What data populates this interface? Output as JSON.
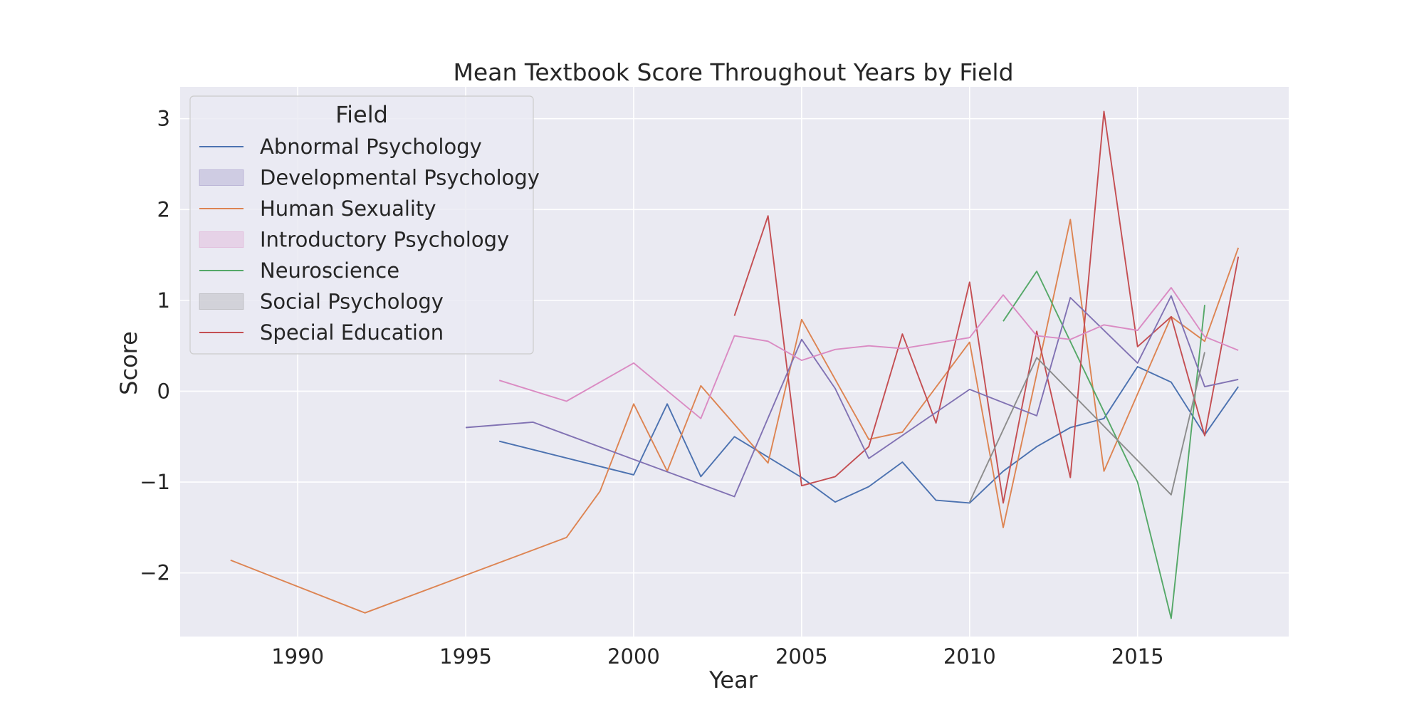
{
  "chart_data": {
    "type": "line",
    "title": "Mean Textbook Score Throughout Years by Field",
    "xlabel": "Year",
    "ylabel": "Score",
    "xlim": [
      1986.5,
      2019.5
    ],
    "ylim": [
      -2.7,
      3.35
    ],
    "xticks": [
      1990,
      1995,
      2000,
      2005,
      2010,
      2015
    ],
    "yticks": [
      -2,
      -1,
      0,
      1,
      2,
      3
    ],
    "grid": true,
    "background": "#eaeaf2",
    "legend": {
      "title": "Field",
      "placement": "top-left",
      "entries": [
        {
          "label": "Abnormal Psychology",
          "kind": "line",
          "color": "#4c72b0"
        },
        {
          "label": "Developmental Psychology",
          "kind": "patch",
          "color": "#8172b3"
        },
        {
          "label": "Human Sexuality",
          "kind": "line",
          "color": "#dd8452"
        },
        {
          "label": "Introductory Psychology",
          "kind": "patch",
          "color": "#da8bc3"
        },
        {
          "label": "Neuroscience",
          "kind": "line",
          "color": "#55a868"
        },
        {
          "label": "Social Psychology",
          "kind": "patch",
          "color": "#8c8c8c"
        },
        {
          "label": "Special Education",
          "kind": "line",
          "color": "#c44e52"
        }
      ]
    },
    "series": [
      {
        "color": "#4c72b0",
        "points": [
          [
            1996,
            -0.55
          ],
          [
            2000,
            -0.92
          ],
          [
            2001,
            -0.14
          ],
          [
            2002,
            -0.94
          ],
          [
            2003,
            -0.5
          ],
          [
            2005,
            -0.95
          ],
          [
            2006,
            -1.22
          ],
          [
            2007,
            -1.05
          ],
          [
            2008,
            -0.78
          ],
          [
            2009,
            -1.2
          ],
          [
            2010,
            -1.23
          ],
          [
            2011,
            -0.88
          ],
          [
            2012,
            -0.61
          ],
          [
            2013,
            -0.4
          ],
          [
            2014,
            -0.3
          ],
          [
            2015,
            0.27
          ],
          [
            2016,
            0.1
          ],
          [
            2017,
            -0.48
          ],
          [
            2018,
            0.05
          ]
        ]
      },
      {
        "color": "#dd8452",
        "points": [
          [
            1988,
            -1.86
          ],
          [
            1992,
            -2.44
          ],
          [
            1998,
            -1.61
          ],
          [
            1999,
            -1.1
          ],
          [
            2000,
            -0.14
          ],
          [
            2001,
            -0.88
          ],
          [
            2002,
            0.06
          ],
          [
            2004,
            -0.79
          ],
          [
            2005,
            0.79
          ],
          [
            2007,
            -0.53
          ],
          [
            2008,
            -0.45
          ],
          [
            2010,
            0.54
          ],
          [
            2011,
            -1.5
          ],
          [
            2013,
            1.89
          ],
          [
            2014,
            -0.88
          ],
          [
            2016,
            0.82
          ],
          [
            2017,
            0.55
          ],
          [
            2018,
            1.58
          ]
        ]
      },
      {
        "color": "#55a868",
        "points": [
          [
            2011,
            0.77
          ],
          [
            2012,
            1.32
          ],
          [
            2015,
            -1.0
          ],
          [
            2016,
            -2.5
          ],
          [
            2017,
            0.95
          ]
        ]
      },
      {
        "color": "#c44e52",
        "points": [
          [
            2003,
            0.83
          ],
          [
            2004,
            1.93
          ],
          [
            2005,
            -1.04
          ],
          [
            2006,
            -0.94
          ],
          [
            2007,
            -0.61
          ],
          [
            2008,
            0.63
          ],
          [
            2009,
            -0.35
          ],
          [
            2010,
            1.2
          ],
          [
            2011,
            -1.23
          ],
          [
            2012,
            0.66
          ],
          [
            2013,
            -0.95
          ],
          [
            2014,
            3.08
          ],
          [
            2015,
            0.49
          ],
          [
            2016,
            0.82
          ],
          [
            2017,
            -0.49
          ],
          [
            2018,
            1.48
          ]
        ]
      },
      {
        "color": "#8172b3",
        "points": [
          [
            1995,
            -0.4
          ],
          [
            1997,
            -0.34
          ],
          [
            2003,
            -1.16
          ],
          [
            2005,
            0.57
          ],
          [
            2006,
            0.03
          ],
          [
            2007,
            -0.74
          ],
          [
            2010,
            0.02
          ],
          [
            2012,
            -0.27
          ],
          [
            2013,
            1.03
          ],
          [
            2015,
            0.31
          ],
          [
            2016,
            1.05
          ],
          [
            2017,
            0.05
          ],
          [
            2018,
            0.13
          ]
        ]
      },
      {
        "color": "#da8bc3",
        "points": [
          [
            1996,
            0.12
          ],
          [
            1998,
            -0.11
          ],
          [
            2000,
            0.31
          ],
          [
            2002,
            -0.3
          ],
          [
            2003,
            0.61
          ],
          [
            2004,
            0.55
          ],
          [
            2005,
            0.34
          ],
          [
            2006,
            0.46
          ],
          [
            2007,
            0.5
          ],
          [
            2008,
            0.47
          ],
          [
            2010,
            0.59
          ],
          [
            2011,
            1.06
          ],
          [
            2012,
            0.61
          ],
          [
            2013,
            0.57
          ],
          [
            2014,
            0.73
          ],
          [
            2015,
            0.67
          ],
          [
            2016,
            1.14
          ],
          [
            2017,
            0.6
          ],
          [
            2018,
            0.45
          ]
        ]
      },
      {
        "color": "#8c8c8c",
        "points": [
          [
            2010,
            -1.22
          ],
          [
            2012,
            0.37
          ],
          [
            2016,
            -1.14
          ],
          [
            2017,
            0.43
          ]
        ]
      }
    ]
  }
}
